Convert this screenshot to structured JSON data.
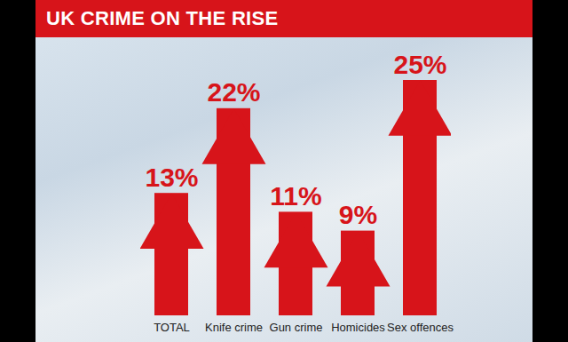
{
  "chart_data": {
    "type": "bar",
    "title": "UK CRIME ON THE RISE",
    "categories": [
      "TOTAL",
      "Knife crime",
      "Gun crime",
      "Homicides",
      "Sex offences"
    ],
    "values": [
      13,
      22,
      11,
      9,
      25
    ],
    "value_labels": [
      "13%",
      "22%",
      "11%",
      "9%",
      "25%"
    ],
    "color": "#d7141a",
    "data_labels": true,
    "tick_labels": "x"
  }
}
